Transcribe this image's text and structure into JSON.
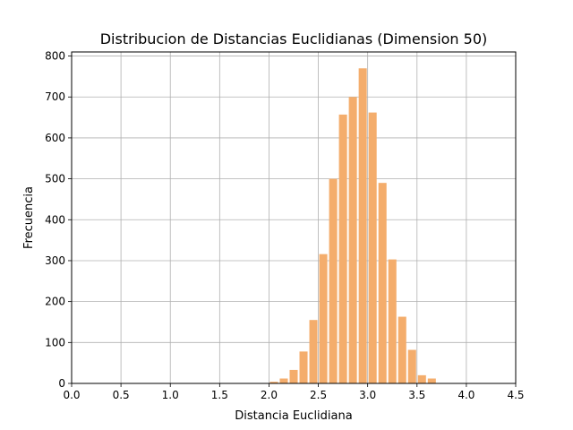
{
  "chart_data": {
    "type": "bar",
    "title": "Distribucion de Distancias Euclidianas (Dimension 50)",
    "xlabel": "Distancia Euclidiana",
    "ylabel": "Frecuencia",
    "xlim": [
      0.0,
      4.5
    ],
    "ylim": [
      0,
      810
    ],
    "xticks": [
      "0.0",
      "0.5",
      "1.0",
      "1.5",
      "2.0",
      "2.5",
      "3.0",
      "3.5",
      "4.0",
      "4.5"
    ],
    "yticks": [
      "0",
      "100",
      "200",
      "300",
      "400",
      "500",
      "600",
      "700",
      "800"
    ],
    "grid": true,
    "bar_color": "#f4ad6c",
    "bin_width": 0.1,
    "bars": [
      {
        "x": 2.05,
        "value": 4
      },
      {
        "x": 2.15,
        "value": 12
      },
      {
        "x": 2.25,
        "value": 33
      },
      {
        "x": 2.35,
        "value": 78
      },
      {
        "x": 2.45,
        "value": 155
      },
      {
        "x": 2.55,
        "value": 316
      },
      {
        "x": 2.65,
        "value": 500
      },
      {
        "x": 2.75,
        "value": 657
      },
      {
        "x": 2.85,
        "value": 700
      },
      {
        "x": 2.95,
        "value": 770
      },
      {
        "x": 3.05,
        "value": 662
      },
      {
        "x": 3.15,
        "value": 490
      },
      {
        "x": 3.25,
        "value": 303
      },
      {
        "x": 3.35,
        "value": 163
      },
      {
        "x": 3.45,
        "value": 82
      },
      {
        "x": 3.55,
        "value": 20
      },
      {
        "x": 3.65,
        "value": 12
      }
    ]
  }
}
